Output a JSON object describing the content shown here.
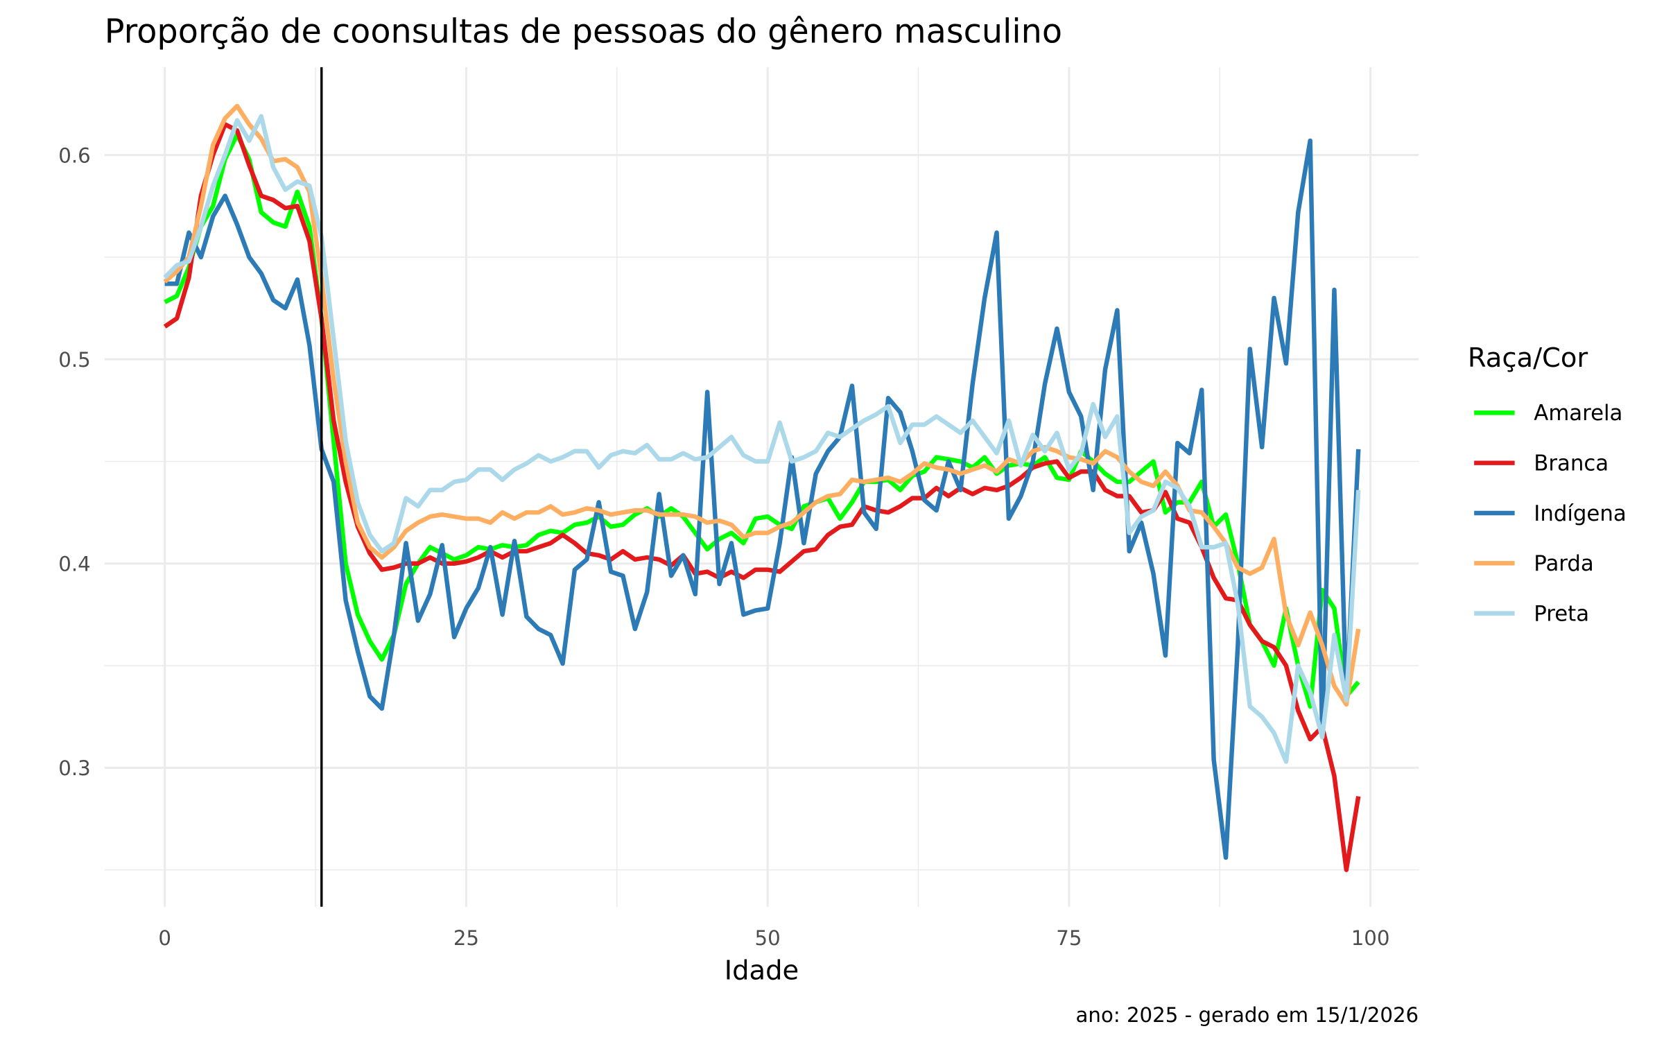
{
  "chart_data": {
    "type": "line",
    "title": "Proporção de coonsultas de pessoas do gênero masculino",
    "xlabel": "Idade",
    "ylabel": "",
    "caption": "ano: 2025 - gerado em 15/1/2026",
    "xlim": [
      -5,
      104
    ],
    "ylim": [
      0.232,
      0.643
    ],
    "x_ticks": [
      0,
      25,
      50,
      75,
      100
    ],
    "y_ticks": [
      0.3,
      0.4,
      0.5,
      0.6
    ],
    "x_tick_labels": [
      "0",
      "25",
      "50",
      "75",
      "100"
    ],
    "y_tick_labels": [
      "0.3",
      "0.4",
      "0.5",
      "0.6"
    ],
    "grid": true,
    "vline_x": 13,
    "legend": {
      "title": "Raça/Cor",
      "placement": "right"
    },
    "x_start": 0,
    "series": [
      {
        "name": "Amarela",
        "color": "#00ff00",
        "values": [
          0.528,
          0.531,
          0.545,
          0.565,
          0.575,
          0.598,
          0.61,
          0.598,
          0.572,
          0.567,
          0.565,
          0.582,
          0.565,
          0.52,
          0.46,
          0.4,
          0.375,
          0.362,
          0.353,
          0.365,
          0.39,
          0.4,
          0.408,
          0.405,
          0.402,
          0.404,
          0.408,
          0.407,
          0.409,
          0.408,
          0.409,
          0.414,
          0.416,
          0.415,
          0.419,
          0.42,
          0.423,
          0.418,
          0.419,
          0.424,
          0.427,
          0.423,
          0.427,
          0.423,
          0.415,
          0.407,
          0.412,
          0.415,
          0.41,
          0.422,
          0.423,
          0.419,
          0.417,
          0.428,
          0.43,
          0.432,
          0.422,
          0.43,
          0.44,
          0.44,
          0.441,
          0.436,
          0.443,
          0.445,
          0.452,
          0.451,
          0.45,
          0.447,
          0.452,
          0.444,
          0.448,
          0.449,
          0.448,
          0.452,
          0.442,
          0.441,
          0.455,
          0.45,
          0.444,
          0.44,
          0.44,
          0.445,
          0.45,
          0.425,
          0.43,
          0.43,
          0.44,
          0.418,
          0.424,
          0.4,
          0.37,
          0.362,
          0.35,
          0.378,
          0.35,
          0.33,
          0.387,
          0.378,
          0.335,
          0.342
        ]
      },
      {
        "name": "Branca",
        "color": "#e31a1c",
        "values": [
          0.516,
          0.52,
          0.54,
          0.58,
          0.6,
          0.615,
          0.612,
          0.595,
          0.58,
          0.578,
          0.574,
          0.575,
          0.558,
          0.52,
          0.47,
          0.44,
          0.418,
          0.405,
          0.397,
          0.398,
          0.4,
          0.4,
          0.403,
          0.4,
          0.4,
          0.401,
          0.403,
          0.406,
          0.403,
          0.406,
          0.406,
          0.408,
          0.41,
          0.414,
          0.41,
          0.405,
          0.404,
          0.402,
          0.406,
          0.402,
          0.403,
          0.402,
          0.399,
          0.404,
          0.395,
          0.396,
          0.393,
          0.396,
          0.393,
          0.397,
          0.397,
          0.396,
          0.401,
          0.406,
          0.407,
          0.414,
          0.418,
          0.419,
          0.428,
          0.426,
          0.425,
          0.428,
          0.432,
          0.432,
          0.437,
          0.433,
          0.437,
          0.434,
          0.437,
          0.436,
          0.438,
          0.442,
          0.447,
          0.449,
          0.45,
          0.442,
          0.445,
          0.445,
          0.436,
          0.433,
          0.433,
          0.425,
          0.426,
          0.435,
          0.422,
          0.42,
          0.408,
          0.393,
          0.383,
          0.382,
          0.37,
          0.362,
          0.359,
          0.35,
          0.328,
          0.314,
          0.32,
          0.296,
          0.25,
          0.286
        ]
      },
      {
        "name": "Indígena",
        "color": "#2c7bb6",
        "values": [
          0.537,
          0.537,
          0.562,
          0.55,
          0.57,
          0.58,
          0.566,
          0.55,
          0.542,
          0.529,
          0.525,
          0.539,
          0.507,
          0.456,
          0.44,
          0.382,
          0.357,
          0.335,
          0.329,
          0.365,
          0.41,
          0.372,
          0.385,
          0.409,
          0.364,
          0.378,
          0.388,
          0.408,
          0.375,
          0.411,
          0.374,
          0.368,
          0.365,
          0.351,
          0.397,
          0.402,
          0.43,
          0.396,
          0.394,
          0.368,
          0.386,
          0.434,
          0.394,
          0.404,
          0.385,
          0.484,
          0.39,
          0.41,
          0.375,
          0.377,
          0.378,
          0.41,
          0.452,
          0.41,
          0.444,
          0.455,
          0.462,
          0.487,
          0.425,
          0.417,
          0.481,
          0.474,
          0.455,
          0.431,
          0.426,
          0.45,
          0.436,
          0.488,
          0.53,
          0.562,
          0.422,
          0.433,
          0.45,
          0.488,
          0.515,
          0.484,
          0.472,
          0.436,
          0.495,
          0.524,
          0.406,
          0.42,
          0.395,
          0.355,
          0.459,
          0.454,
          0.485,
          0.304,
          0.256,
          0.36,
          0.505,
          0.457,
          0.53,
          0.498,
          0.572,
          0.607,
          0.316,
          0.534,
          0.332,
          0.456
        ]
      },
      {
        "name": "Parda",
        "color": "#fdae61",
        "values": [
          0.538,
          0.543,
          0.55,
          0.575,
          0.605,
          0.618,
          0.624,
          0.615,
          0.608,
          0.597,
          0.598,
          0.594,
          0.582,
          0.54,
          0.49,
          0.45,
          0.42,
          0.408,
          0.403,
          0.408,
          0.416,
          0.42,
          0.423,
          0.424,
          0.423,
          0.422,
          0.422,
          0.42,
          0.425,
          0.422,
          0.425,
          0.425,
          0.428,
          0.424,
          0.425,
          0.427,
          0.426,
          0.424,
          0.425,
          0.426,
          0.426,
          0.424,
          0.424,
          0.424,
          0.423,
          0.42,
          0.421,
          0.419,
          0.413,
          0.415,
          0.415,
          0.418,
          0.42,
          0.425,
          0.43,
          0.433,
          0.434,
          0.441,
          0.44,
          0.441,
          0.442,
          0.44,
          0.444,
          0.449,
          0.447,
          0.446,
          0.444,
          0.446,
          0.448,
          0.445,
          0.451,
          0.449,
          0.455,
          0.457,
          0.455,
          0.452,
          0.451,
          0.449,
          0.455,
          0.452,
          0.445,
          0.44,
          0.438,
          0.445,
          0.438,
          0.426,
          0.425,
          0.418,
          0.41,
          0.398,
          0.395,
          0.398,
          0.412,
          0.375,
          0.36,
          0.376,
          0.36,
          0.34,
          0.331,
          0.368
        ]
      },
      {
        "name": "Preta",
        "color": "#abd9e9",
        "values": [
          0.54,
          0.546,
          0.548,
          0.565,
          0.585,
          0.6,
          0.617,
          0.607,
          0.619,
          0.594,
          0.583,
          0.587,
          0.585,
          0.56,
          0.51,
          0.46,
          0.43,
          0.414,
          0.406,
          0.41,
          0.432,
          0.428,
          0.436,
          0.436,
          0.44,
          0.441,
          0.446,
          0.446,
          0.441,
          0.446,
          0.449,
          0.453,
          0.45,
          0.452,
          0.455,
          0.455,
          0.447,
          0.453,
          0.455,
          0.454,
          0.458,
          0.451,
          0.451,
          0.454,
          0.451,
          0.452,
          0.457,
          0.462,
          0.453,
          0.45,
          0.45,
          0.469,
          0.45,
          0.452,
          0.455,
          0.464,
          0.462,
          0.466,
          0.47,
          0.473,
          0.477,
          0.459,
          0.468,
          0.468,
          0.472,
          0.468,
          0.464,
          0.47,
          0.462,
          0.454,
          0.47,
          0.448,
          0.463,
          0.455,
          0.464,
          0.446,
          0.454,
          0.478,
          0.462,
          0.472,
          0.415,
          0.423,
          0.426,
          0.44,
          0.437,
          0.428,
          0.408,
          0.408,
          0.41,
          0.38,
          0.33,
          0.325,
          0.317,
          0.303,
          0.35,
          0.337,
          0.315,
          0.365,
          0.333,
          0.436
        ]
      }
    ]
  }
}
